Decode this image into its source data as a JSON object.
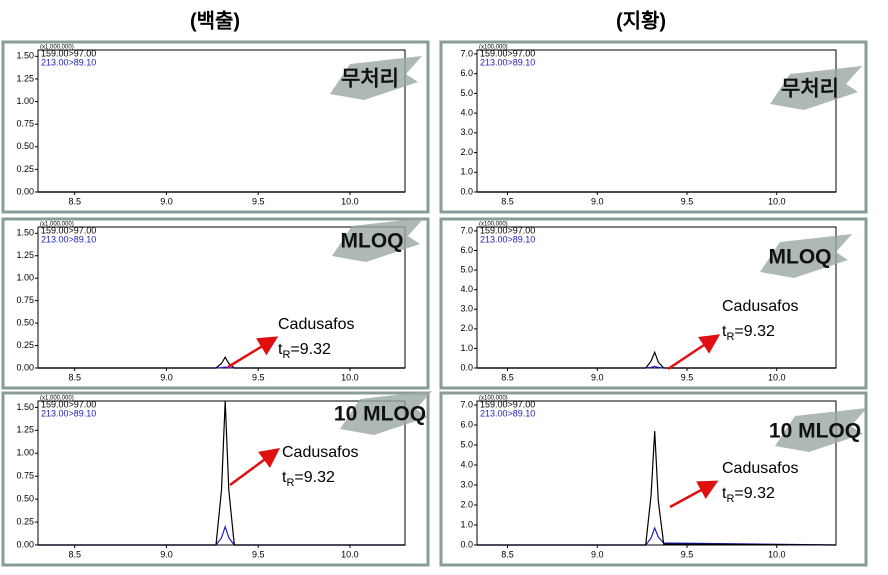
{
  "column_titles": [
    "(백출)",
    "(지황)"
  ],
  "chart_data": [
    {
      "type": "line",
      "title": "무처리",
      "axis_multiplier": "(x1,000,000)",
      "x": [
        8.3,
        9.27,
        9.3,
        9.32,
        9.34,
        9.37,
        10.3
      ],
      "series": [
        {
          "name": "159.00>97.00",
          "color": "#000000",
          "values": [
            0,
            0,
            0,
            0,
            0,
            0,
            0
          ]
        },
        {
          "name": "213.00>89.10",
          "color": "#2020c0",
          "values": [
            0,
            0,
            0,
            0,
            0,
            0,
            0
          ]
        }
      ],
      "xlim": [
        8.3,
        10.3
      ],
      "xticks": [
        8.5,
        {
          "value": 9,
          "label": "9.0"
        },
        9.5,
        {
          "value": 10,
          "label": "10.0"
        }
      ],
      "ylim": [
        0,
        1.57
      ],
      "yticks": [
        {
          "value": 0,
          "label": "0.00"
        },
        {
          "value": 0.25,
          "label": "0.25"
        },
        {
          "value": 0.5,
          "label": "0.50"
        },
        {
          "value": 0.75,
          "label": "0.75"
        },
        {
          "value": 1,
          "label": "1.00"
        },
        {
          "value": 1.25,
          "label": "1.25"
        },
        {
          "value": 1.5,
          "label": "1.50"
        }
      ]
    },
    {
      "type": "line",
      "title": "무처리",
      "axis_multiplier": "(x100,000)",
      "x": [
        8.33,
        9.27,
        9.3,
        9.32,
        9.34,
        9.37,
        10.33
      ],
      "series": [
        {
          "name": "159.00>97.00",
          "color": "#000000",
          "values": [
            0,
            0,
            0,
            0,
            0,
            0,
            0
          ]
        },
        {
          "name": "213.00>89.10",
          "color": "#2020c0",
          "values": [
            0,
            0,
            0,
            0,
            0,
            0,
            0
          ]
        }
      ],
      "xlim": [
        8.33,
        10.33
      ],
      "xticks": [
        8.5,
        {
          "value": 9,
          "label": "9.0"
        },
        9.5,
        {
          "value": 10,
          "label": "10.0"
        }
      ],
      "ylim": [
        0,
        7.2
      ],
      "yticks": [
        {
          "value": 0,
          "label": "0.0"
        },
        {
          "value": 1,
          "label": "1.0"
        },
        {
          "value": 2,
          "label": "2.0"
        },
        {
          "value": 3,
          "label": "3.0"
        },
        {
          "value": 4,
          "label": "4.0"
        },
        {
          "value": 5,
          "label": "5.0"
        },
        {
          "value": 6,
          "label": "6.0"
        },
        {
          "value": 7,
          "label": "7.0"
        }
      ]
    },
    {
      "type": "line",
      "title": "MLOQ",
      "axis_multiplier": "(x1,000,000)",
      "x": [
        8.3,
        9.27,
        9.3,
        9.32,
        9.34,
        9.37,
        10.3
      ],
      "series": [
        {
          "name": "159.00>97.00",
          "color": "#000000",
          "values": [
            0,
            0,
            0.05,
            0.12,
            0.05,
            0,
            0
          ]
        },
        {
          "name": "213.00>89.10",
          "color": "#2020c0",
          "values": [
            0,
            0,
            0.005,
            0.01,
            0.005,
            0,
            0
          ]
        }
      ],
      "annotation": {
        "text": "Cadusafos",
        "retention": {
          "prefix": "t",
          "subscript": "R",
          "suffix": "=9.32"
        }
      },
      "xlim": [
        8.3,
        10.3
      ],
      "xticks": [
        8.5,
        {
          "value": 9,
          "label": "9.0"
        },
        9.5,
        {
          "value": 10,
          "label": "10.0"
        }
      ],
      "ylim": [
        0,
        1.57
      ],
      "yticks": [
        {
          "value": 0,
          "label": "0.00"
        },
        {
          "value": 0.25,
          "label": "0.25"
        },
        {
          "value": 0.5,
          "label": "0.50"
        },
        {
          "value": 0.75,
          "label": "0.75"
        },
        {
          "value": 1,
          "label": "1.00"
        },
        {
          "value": 1.25,
          "label": "1.25"
        },
        {
          "value": 1.5,
          "label": "1.50"
        }
      ]
    },
    {
      "type": "line",
      "title": "MLOQ",
      "axis_multiplier": "(x100,000)",
      "x": [
        8.33,
        9.27,
        9.3,
        9.32,
        9.34,
        9.37,
        10.33
      ],
      "series": [
        {
          "name": "159.00>97.00",
          "color": "#000000",
          "values": [
            0,
            0,
            0.35,
            0.8,
            0.3,
            0,
            0
          ]
        },
        {
          "name": "213.00>89.10",
          "color": "#2020c0",
          "values": [
            0,
            0,
            0.03,
            0.08,
            0.03,
            0,
            0
          ]
        }
      ],
      "annotation": {
        "text": "Cadusafos",
        "retention": {
          "prefix": "t",
          "subscript": "R",
          "suffix": "=9.32"
        }
      },
      "xlim": [
        8.33,
        10.33
      ],
      "xticks": [
        8.5,
        {
          "value": 9,
          "label": "9.0"
        },
        9.5,
        {
          "value": 10,
          "label": "10.0"
        }
      ],
      "ylim": [
        0,
        7.2
      ],
      "yticks": [
        {
          "value": 0,
          "label": "0.0"
        },
        {
          "value": 1,
          "label": "1.0"
        },
        {
          "value": 2,
          "label": "2.0"
        },
        {
          "value": 3,
          "label": "3.0"
        },
        {
          "value": 4,
          "label": "4.0"
        },
        {
          "value": 5,
          "label": "5.0"
        },
        {
          "value": 6,
          "label": "6.0"
        },
        {
          "value": 7,
          "label": "7.0"
        }
      ]
    },
    {
      "type": "line",
      "title": "10 MLOQ",
      "axis_multiplier": "(x1,000,000)",
      "x": [
        8.3,
        9.27,
        9.3,
        9.32,
        9.34,
        9.37,
        10.3
      ],
      "series": [
        {
          "name": "159.00>97.00",
          "color": "#000000",
          "values": [
            0,
            0,
            0.6,
            1.57,
            0.6,
            0,
            0
          ]
        },
        {
          "name": "213.00>89.10",
          "color": "#2020c0",
          "values": [
            0,
            0,
            0.08,
            0.2,
            0.08,
            0,
            0
          ]
        }
      ],
      "annotation": {
        "text": "Cadusafos",
        "retention": {
          "prefix": "t",
          "subscript": "R",
          "suffix": "=9.32"
        }
      },
      "xlim": [
        8.3,
        10.3
      ],
      "xticks": [
        8.5,
        {
          "value": 9,
          "label": "9.0"
        },
        9.5,
        {
          "value": 10,
          "label": "10.0"
        }
      ],
      "ylim": [
        0,
        1.57
      ],
      "yticks": [
        {
          "value": 0,
          "label": "0.00"
        },
        {
          "value": 0.25,
          "label": "0.25"
        },
        {
          "value": 0.5,
          "label": "0.50"
        },
        {
          "value": 0.75,
          "label": "0.75"
        },
        {
          "value": 1,
          "label": "1.00"
        },
        {
          "value": 1.25,
          "label": "1.25"
        },
        {
          "value": 1.5,
          "label": "1.50"
        }
      ]
    },
    {
      "type": "line",
      "title": "10 MLOQ",
      "axis_multiplier": "(x100,000)",
      "x": [
        8.33,
        9.27,
        9.3,
        9.32,
        9.34,
        9.37,
        10.33
      ],
      "series": [
        {
          "name": "159.00>97.00",
          "color": "#000000",
          "values": [
            0,
            0,
            2.5,
            5.7,
            2.2,
            0.05,
            0
          ]
        },
        {
          "name": "213.00>89.10",
          "color": "#2020c0",
          "values": [
            0,
            0,
            0.35,
            0.85,
            0.4,
            0.1,
            0
          ]
        }
      ],
      "annotation": {
        "text": "Cadusafos",
        "retention": {
          "prefix": "t",
          "subscript": "R",
          "suffix": "=9.32"
        }
      },
      "xlim": [
        8.33,
        10.33
      ],
      "xticks": [
        8.5,
        {
          "value": 9,
          "label": "9.0"
        },
        9.5,
        {
          "value": 10,
          "label": "10.0"
        }
      ],
      "ylim": [
        0,
        7.2
      ],
      "yticks": [
        {
          "value": 0,
          "label": "0.0"
        },
        {
          "value": 1,
          "label": "1.0"
        },
        {
          "value": 2,
          "label": "2.0"
        },
        {
          "value": 3,
          "label": "3.0"
        },
        {
          "value": 4,
          "label": "4.0"
        },
        {
          "value": 5,
          "label": "5.0"
        },
        {
          "value": 6,
          "label": "6.0"
        },
        {
          "value": 7,
          "label": "7.0"
        }
      ]
    }
  ]
}
